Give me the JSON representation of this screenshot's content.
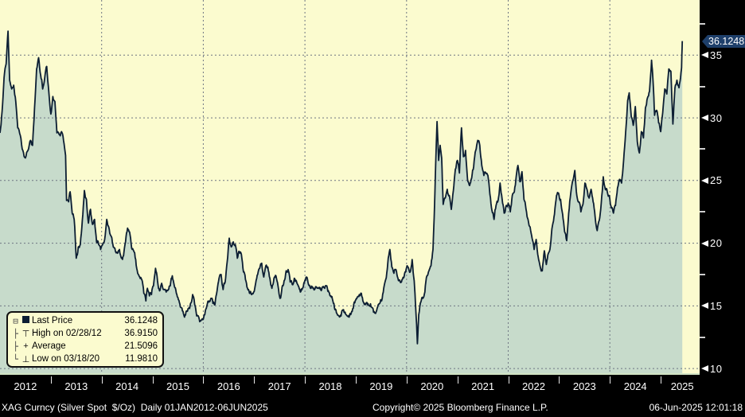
{
  "colors": {
    "background": "#000000",
    "plot_background": "#FBFBCF",
    "area_fill": "#C7DBCB",
    "price_line": "#0C1E33",
    "grid": "#6E7582",
    "baseline_green": "#D2E4C4",
    "tag_background": "#1E3F6A",
    "axis_text": "#FFFFFF"
  },
  "legend": {
    "items": [
      {
        "tree": "⊟",
        "marker": "last-price-swatch",
        "glyph": "",
        "label": "Last Price",
        "value": "36.1248"
      },
      {
        "tree": "├",
        "marker": "high-marker",
        "glyph": "⊤",
        "label": "High on 02/28/12",
        "value": "36.9150"
      },
      {
        "tree": "├",
        "marker": "average-marker",
        "glyph": "+",
        "label": "Average",
        "value": "21.5096"
      },
      {
        "tree": "└",
        "marker": "low-marker",
        "glyph": "⊥",
        "label": "Low on 03/18/20",
        "value": "11.9810"
      }
    ]
  },
  "price_tag": {
    "label": "36.1248"
  },
  "status_bar": {
    "left": "XAG Curncy (Silver Spot  $/Oz)  Daily 01JAN2012-06JUN2025",
    "copyright": "Copyright© 2025 Bloomberg Finance L.P.",
    "timestamp": "06-Jun-2025 12:01:18"
  },
  "chart_data": {
    "type": "area",
    "title": "XAG Curncy (Silver Spot $/Oz) Daily",
    "ylabel": "",
    "xlabel": "",
    "xlim": [
      2012.0,
      2025.766
    ],
    "ylim": [
      9.5,
      39.4
    ],
    "yticks": [
      10,
      15,
      20,
      25,
      30,
      35
    ],
    "yticks_minor": [
      12.5,
      17.5,
      22.5,
      27.5,
      32.5,
      37.5
    ],
    "xtick_labels": [
      "2012",
      "2013",
      "2014",
      "2015",
      "2016",
      "2017",
      "2018",
      "2019",
      "2020",
      "2021",
      "2022",
      "2023",
      "2024",
      "2025"
    ],
    "grid_vertical_years": [
      2014,
      2016,
      2018,
      2020,
      2022,
      2024
    ],
    "grid": true,
    "legend_position": "bottom-left",
    "last": {
      "date": "06/06/25",
      "price": 36.1248
    },
    "high": {
      "date": "02/28/12",
      "price": 36.915
    },
    "average": 21.5096,
    "low": {
      "date": "03/18/20",
      "price": 11.981
    },
    "x": [
      2012.0,
      2012.04,
      2012.08,
      2012.12,
      2012.158,
      2012.19,
      2012.23,
      2012.27,
      2012.31,
      2012.35,
      2012.4,
      2012.45,
      2012.5,
      2012.55,
      2012.6,
      2012.64,
      2012.68,
      2012.72,
      2012.76,
      2012.8,
      2012.84,
      2012.88,
      2012.92,
      2012.96,
      2013.0,
      2013.04,
      2013.08,
      2013.12,
      2013.16,
      2013.21,
      2013.25,
      2013.29,
      2013.31,
      2013.35,
      2013.38,
      2013.42,
      2013.46,
      2013.5,
      2013.54,
      2013.58,
      2013.62,
      2013.66,
      2013.7,
      2013.74,
      2013.78,
      2013.82,
      2013.86,
      2013.9,
      2013.94,
      2013.98,
      2014.02,
      2014.06,
      2014.1,
      2014.14,
      2014.18,
      2014.22,
      2014.26,
      2014.31,
      2014.35,
      2014.39,
      2014.43,
      2014.47,
      2014.51,
      2014.55,
      2014.59,
      2014.63,
      2014.67,
      2014.71,
      2014.75,
      2014.79,
      2014.83,
      2014.87,
      2014.9,
      2014.94,
      2014.98,
      2015.02,
      2015.06,
      2015.1,
      2015.14,
      2015.18,
      2015.22,
      2015.27,
      2015.31,
      2015.35,
      2015.39,
      2015.43,
      2015.47,
      2015.51,
      2015.55,
      2015.59,
      2015.63,
      2015.67,
      2015.71,
      2015.75,
      2015.79,
      2015.83,
      2015.87,
      2015.91,
      2015.95,
      2015.99,
      2016.03,
      2016.07,
      2016.11,
      2016.15,
      2016.19,
      2016.23,
      2016.27,
      2016.31,
      2016.35,
      2016.39,
      2016.43,
      2016.47,
      2016.51,
      2016.55,
      2016.59,
      2016.63,
      2016.67,
      2016.71,
      2016.75,
      2016.79,
      2016.83,
      2016.87,
      2016.91,
      2016.95,
      2016.99,
      2017.03,
      2017.07,
      2017.11,
      2017.15,
      2017.19,
      2017.23,
      2017.27,
      2017.31,
      2017.35,
      2017.39,
      2017.43,
      2017.47,
      2017.51,
      2017.55,
      2017.59,
      2017.63,
      2017.67,
      2017.71,
      2017.75,
      2017.79,
      2017.83,
      2017.87,
      2017.91,
      2017.95,
      2017.99,
      2018.03,
      2018.07,
      2018.11,
      2018.15,
      2018.19,
      2018.23,
      2018.27,
      2018.31,
      2018.35,
      2018.39,
      2018.43,
      2018.47,
      2018.51,
      2018.55,
      2018.59,
      2018.63,
      2018.67,
      2018.71,
      2018.75,
      2018.79,
      2018.83,
      2018.87,
      2018.91,
      2018.95,
      2018.99,
      2019.03,
      2019.07,
      2019.11,
      2019.15,
      2019.19,
      2019.23,
      2019.27,
      2019.31,
      2019.35,
      2019.39,
      2019.43,
      2019.47,
      2019.51,
      2019.55,
      2019.59,
      2019.63,
      2019.67,
      2019.71,
      2019.75,
      2019.79,
      2019.83,
      2019.87,
      2019.91,
      2019.95,
      2019.99,
      2020.03,
      2020.07,
      2020.11,
      2020.15,
      2020.18,
      2020.213,
      2020.24,
      2020.28,
      2020.32,
      2020.36,
      2020.4,
      2020.44,
      2020.48,
      2020.52,
      2020.55,
      2020.58,
      2020.6,
      2020.63,
      2020.66,
      2020.69,
      2020.72,
      2020.76,
      2020.8,
      2020.84,
      2020.88,
      2020.92,
      2020.96,
      2021.0,
      2021.04,
      2021.08,
      2021.12,
      2021.16,
      2021.2,
      2021.24,
      2021.28,
      2021.32,
      2021.36,
      2021.4,
      2021.44,
      2021.48,
      2021.52,
      2021.56,
      2021.6,
      2021.64,
      2021.68,
      2021.72,
      2021.76,
      2021.8,
      2021.84,
      2021.88,
      2021.92,
      2021.96,
      2022.0,
      2022.04,
      2022.08,
      2022.12,
      2022.16,
      2022.19,
      2022.23,
      2022.27,
      2022.31,
      2022.35,
      2022.39,
      2022.43,
      2022.47,
      2022.51,
      2022.55,
      2022.59,
      2022.63,
      2022.67,
      2022.71,
      2022.75,
      2022.79,
      2022.83,
      2022.87,
      2022.91,
      2022.95,
      2022.99,
      2023.03,
      2023.07,
      2023.11,
      2023.15,
      2023.19,
      2023.23,
      2023.27,
      2023.31,
      2023.35,
      2023.39,
      2023.43,
      2023.47,
      2023.51,
      2023.55,
      2023.59,
      2023.63,
      2023.67,
      2023.71,
      2023.75,
      2023.79,
      2023.83,
      2023.87,
      2023.91,
      2023.95,
      2023.99,
      2024.03,
      2024.07,
      2024.11,
      2024.15,
      2024.19,
      2024.23,
      2024.27,
      2024.31,
      2024.35,
      2024.38,
      2024.42,
      2024.46,
      2024.5,
      2024.54,
      2024.58,
      2024.62,
      2024.66,
      2024.7,
      2024.74,
      2024.78,
      2024.82,
      2024.85,
      2024.88,
      2024.92,
      2024.96,
      2025.0,
      2025.04,
      2025.08,
      2025.12,
      2025.16,
      2025.2,
      2025.24,
      2025.28,
      2025.32,
      2025.36,
      2025.39,
      2025.41,
      2025.425
    ],
    "p": [
      28.8,
      30.5,
      33.2,
      34.3,
      36.915,
      33.0,
      32.3,
      32.6,
      31.3,
      29.2,
      28.6,
      27.4,
      26.8,
      27.4,
      28.2,
      27.8,
      30.8,
      33.9,
      34.8,
      33.4,
      32.3,
      33.2,
      34.1,
      32.1,
      30.3,
      31.7,
      31.3,
      28.8,
      28.7,
      28.9,
      28.2,
      27.0,
      23.4,
      23.3,
      24.1,
      22.4,
      21.9,
      18.8,
      19.7,
      19.9,
      21.8,
      24.2,
      23.5,
      21.6,
      22.7,
      21.5,
      21.9,
      20.1,
      19.9,
      19.5,
      19.9,
      20.3,
      21.9,
      21.3,
      20.6,
      19.9,
      19.6,
      19.2,
      19.5,
      18.8,
      19.0,
      20.1,
      21.2,
      20.9,
      19.6,
      19.4,
      18.7,
      17.6,
      17.3,
      17.1,
      16.0,
      15.4,
      16.4,
      15.8,
      15.9,
      16.6,
      18.0,
      17.0,
      16.2,
      16.8,
      16.3,
      16.1,
      16.3,
      16.6,
      17.4,
      16.6,
      16.0,
      15.5,
      14.9,
      14.6,
      14.1,
      14.6,
      14.8,
      15.2,
      15.9,
      15.1,
      14.2,
      14.1,
      13.8,
      13.9,
      14.3,
      15.0,
      15.3,
      15.6,
      15.2,
      15.1,
      16.2,
      17.2,
      17.5,
      16.3,
      16.9,
      18.5,
      20.4,
      19.7,
      20.1,
      19.9,
      18.8,
      19.3,
      19.1,
      17.7,
      17.1,
      16.4,
      16.0,
      15.9,
      16.1,
      16.8,
      17.5,
      18.0,
      18.4,
      17.3,
      18.2,
      18.1,
      17.2,
      16.4,
      17.2,
      17.4,
      16.6,
      15.6,
      16.5,
      17.0,
      17.8,
      17.9,
      16.9,
      16.7,
      17.2,
      17.0,
      16.6,
      16.1,
      16.4,
      16.9,
      17.3,
      16.7,
      16.4,
      16.5,
      16.3,
      16.5,
      16.4,
      16.3,
      16.5,
      16.4,
      16.6,
      16.1,
      15.8,
      15.4,
      14.7,
      14.4,
      14.2,
      14.2,
      14.7,
      14.5,
      14.2,
      14.1,
      14.4,
      14.8,
      15.4,
      15.7,
      15.9,
      16.0,
      15.3,
      15.1,
      15.1,
      15.0,
      14.9,
      14.5,
      14.4,
      14.9,
      15.2,
      15.4,
      16.4,
      17.1,
      18.4,
      19.5,
      18.1,
      17.6,
      17.9,
      17.2,
      17.0,
      17.1,
      17.3,
      17.9,
      18.1,
      17.7,
      18.7,
      17.0,
      14.8,
      11.981,
      14.3,
      15.3,
      15.6,
      16.1,
      17.4,
      17.8,
      18.2,
      19.5,
      22.9,
      27.4,
      29.7,
      26.6,
      27.8,
      26.8,
      23.1,
      23.6,
      24.3,
      23.8,
      22.7,
      24.2,
      25.9,
      26.6,
      25.6,
      29.2,
      26.9,
      27.4,
      25.1,
      24.6,
      25.2,
      26.1,
      27.4,
      28.2,
      27.8,
      26.2,
      25.4,
      25.6,
      25.4,
      23.9,
      22.6,
      21.9,
      23.0,
      23.4,
      24.8,
      23.5,
      22.4,
      23.0,
      23.2,
      22.5,
      23.8,
      24.1,
      25.4,
      26.2,
      24.9,
      25.7,
      23.5,
      22.7,
      21.9,
      21.3,
      20.4,
      19.5,
      20.3,
      18.9,
      18.1,
      17.8,
      19.4,
      18.3,
      19.2,
      19.8,
      21.4,
      22.3,
      23.8,
      24.0,
      23.5,
      22.3,
      20.9,
      20.2,
      22.4,
      24.0,
      25.0,
      25.8,
      23.8,
      23.3,
      22.5,
      23.1,
      24.8,
      24.3,
      23.6,
      24.3,
      23.3,
      22.1,
      21.0,
      21.8,
      23.2,
      25.3,
      24.3,
      24.1,
      23.8,
      22.8,
      22.4,
      23.0,
      24.4,
      25.1,
      24.8,
      26.6,
      28.8,
      31.4,
      32.0,
      30.1,
      29.4,
      30.9,
      28.1,
      27.2,
      28.9,
      28.4,
      30.8,
      31.6,
      32.1,
      34.6,
      32.9,
      30.2,
      30.6,
      29.6,
      28.9,
      30.4,
      32.3,
      31.9,
      33.9,
      33.7,
      29.5,
      32.4,
      33.0,
      32.4,
      33.2,
      34.0,
      36.1248
    ]
  }
}
